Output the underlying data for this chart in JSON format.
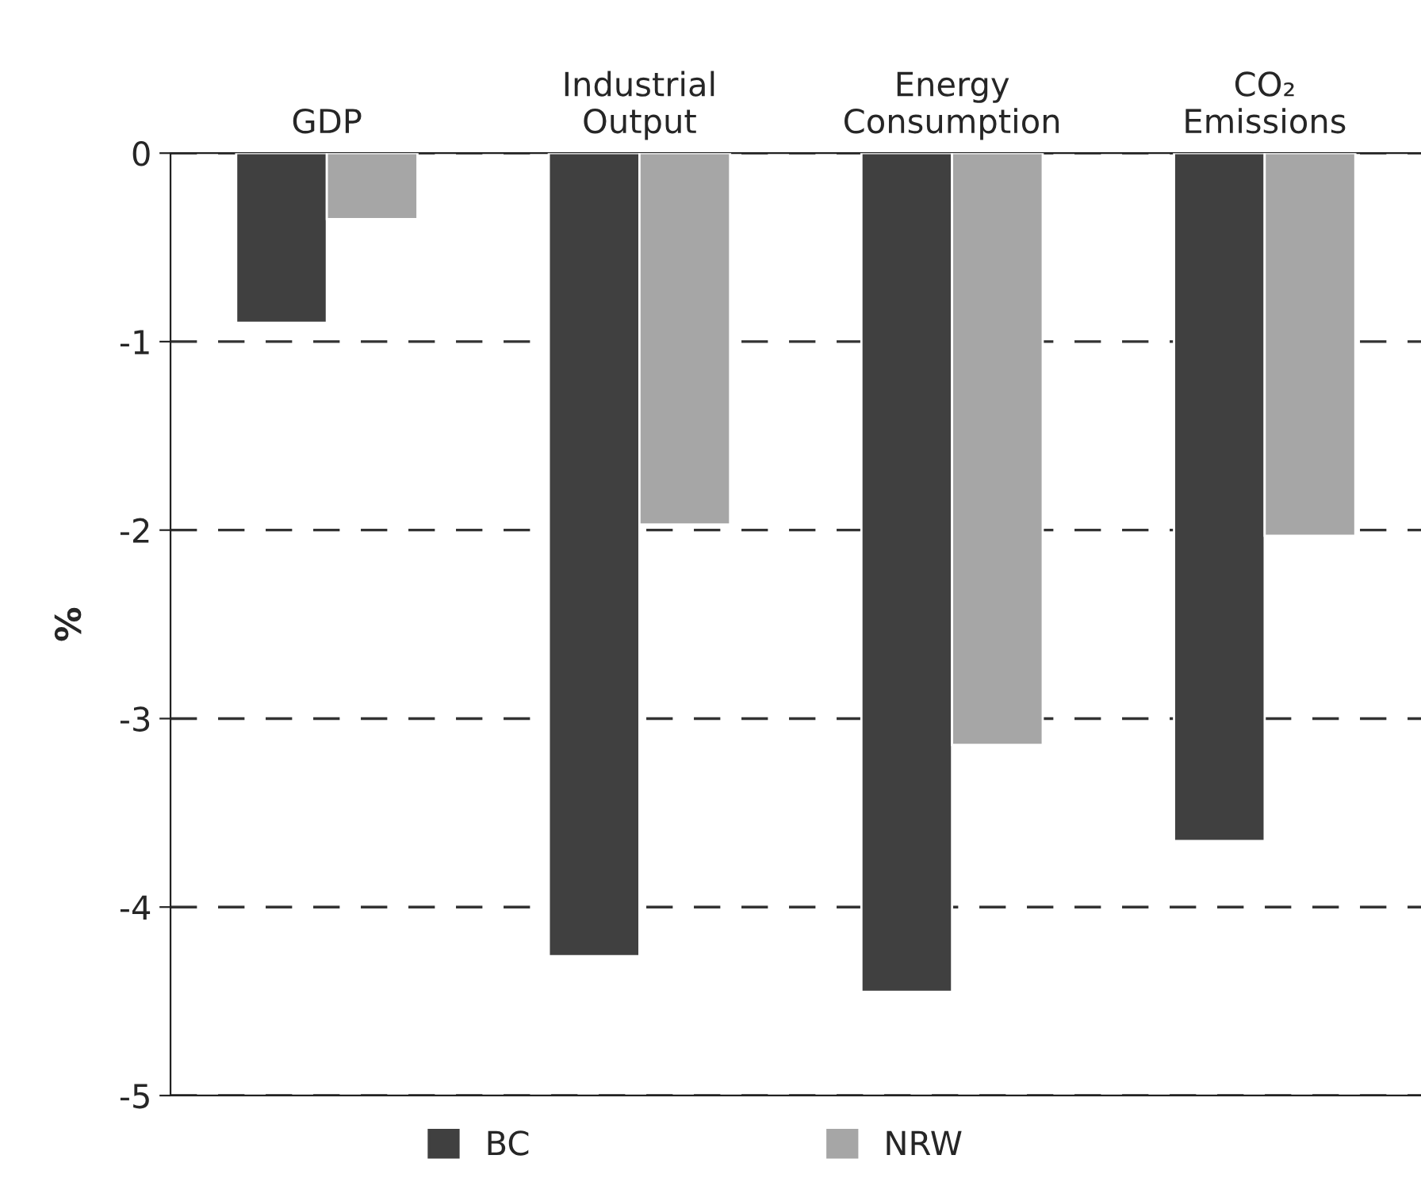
{
  "chart_data": {
    "type": "bar",
    "ylabel": "%",
    "categories": [
      "GDP",
      "Industrial\nOutput",
      "Energy\nConsumption",
      "CO₂\nEmissions"
    ],
    "series": [
      {
        "name": "BC",
        "color": "#404040",
        "values": [
          -0.9,
          -4.26,
          -4.45,
          -3.65
        ]
      },
      {
        "name": "NRW",
        "color": "#a6a6a6",
        "values": [
          -0.35,
          -1.97,
          -3.14,
          -2.03
        ]
      }
    ],
    "ylim": [
      -5,
      0
    ],
    "yticks": [
      -5,
      -4,
      -3,
      -2,
      -1,
      0
    ],
    "grid": "y",
    "legend": "bottom"
  }
}
